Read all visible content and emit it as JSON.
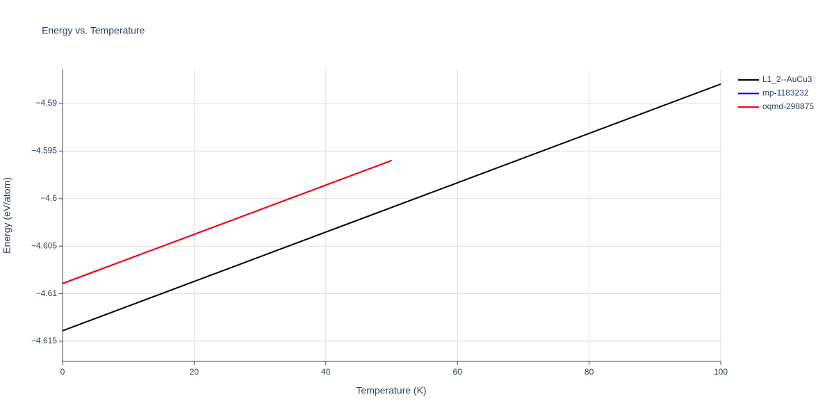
{
  "chart_data": {
    "type": "line",
    "title": "Energy vs. Temperature",
    "x_label": "Temperature (K)",
    "y_label": "Energy (eV/atom)",
    "series": [
      {
        "name": "L1_2--AuCu3",
        "color": "#000000",
        "x": [
          0,
          100
        ],
        "values": [
          -4.6139,
          -4.58795
        ]
      },
      {
        "name": "mp-1183232",
        "color": "#0000ff",
        "x": [
          0,
          50
        ],
        "values": [
          -4.60893,
          -4.59599
        ]
      },
      {
        "name": "oqmd-298875",
        "color": "#ff0000",
        "x": [
          0,
          50
        ],
        "values": [
          -4.60893,
          -4.59599
        ]
      }
    ],
    "xlim": [
      0,
      100
    ],
    "xticks": [
      0,
      20,
      40,
      60,
      80,
      100
    ],
    "ylim": [
      -4.61712,
      -4.58642
    ],
    "yticks": [
      {
        "value": -4.615,
        "label": "−4.615"
      },
      {
        "value": -4.61,
        "label": "−4.61"
      },
      {
        "value": -4.605,
        "label": "−4.605"
      },
      {
        "value": -4.6,
        "label": "−4.6"
      },
      {
        "value": -4.595,
        "label": "−4.595"
      },
      {
        "value": -4.59,
        "label": "−4.59"
      }
    ],
    "grid": true,
    "legend": "right"
  }
}
